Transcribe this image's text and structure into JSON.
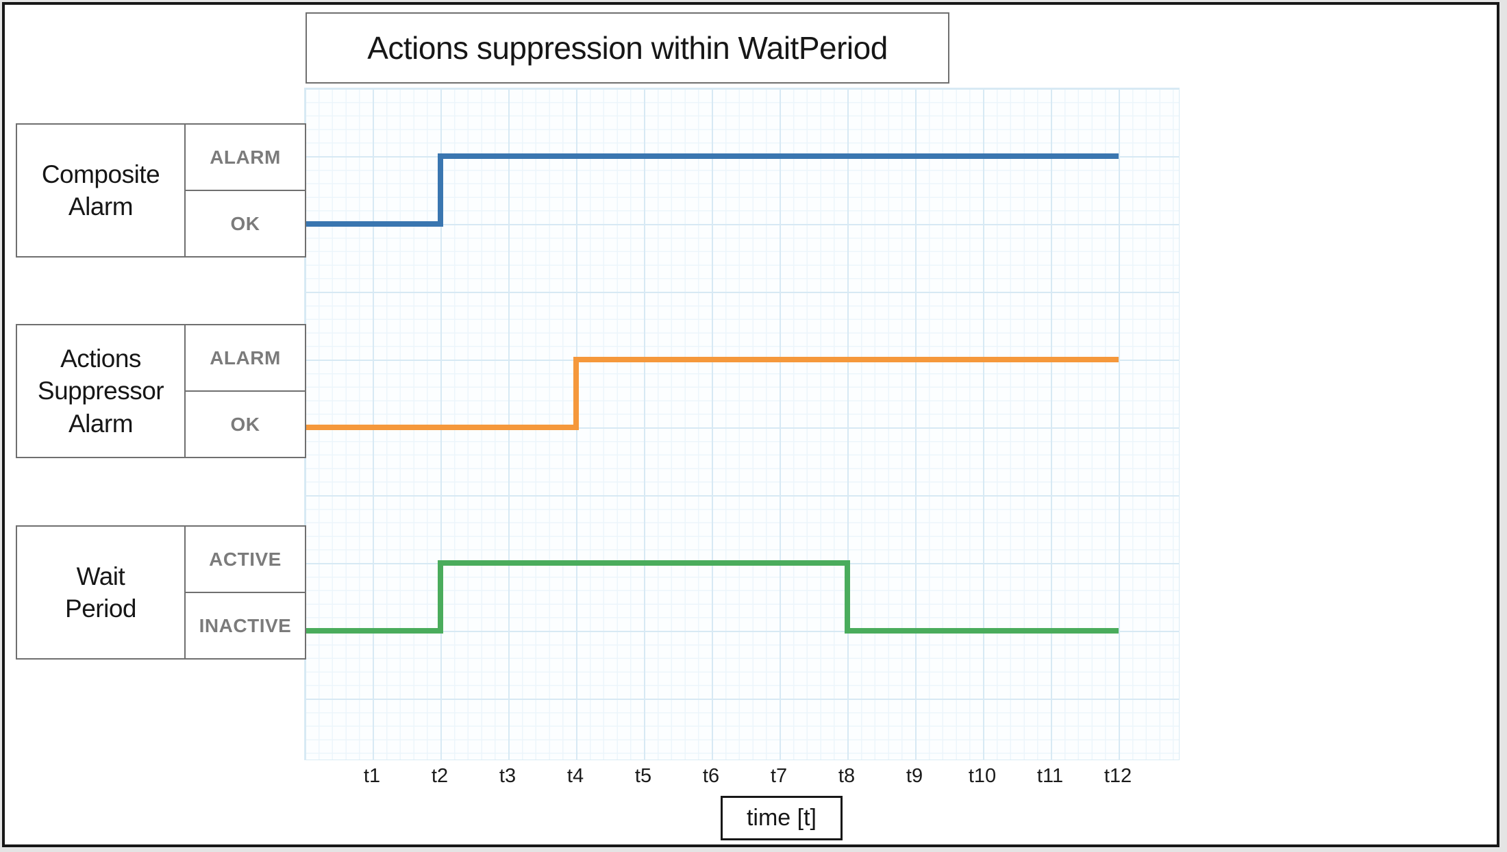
{
  "title": "Actions suppression within WaitPeriod",
  "rows": [
    {
      "label": "Composite\nAlarm",
      "high_label": "ALARM",
      "low_label": "OK"
    },
    {
      "label": "Actions\nSuppressor\nAlarm",
      "high_label": "ALARM",
      "low_label": "OK"
    },
    {
      "label": "Wait\nPeriod",
      "high_label": "ACTIVE",
      "low_label": "INACTIVE"
    }
  ],
  "axis": {
    "ticks": [
      "t1",
      "t2",
      "t3",
      "t4",
      "t5",
      "t6",
      "t7",
      "t8",
      "t9",
      "t10",
      "t11",
      "t12"
    ],
    "label": "time [t]"
  },
  "colors": {
    "composite_alarm_line": "#3a76b0",
    "actions_suppressor_line": "#f5983b",
    "wait_period_line": "#4aac5c",
    "grid_major": "#d7e9f4",
    "grid_minor": "#ecf5fb",
    "box_border": "#6f6f6f",
    "state_text": "#7b7b7b",
    "frame_border": "#171717"
  },
  "chart_data": {
    "type": "line",
    "subtype": "timing-step-diagram",
    "title": "Actions suppression within WaitPeriod",
    "xlabel": "time [t]",
    "x_ticks": [
      "t1",
      "t2",
      "t3",
      "t4",
      "t5",
      "t6",
      "t7",
      "t8",
      "t9",
      "t10",
      "t11",
      "t12"
    ],
    "x_range": [
      "t0",
      "t12"
    ],
    "grid": "on",
    "series": [
      {
        "name": "Composite Alarm",
        "color": "#3a76b0",
        "states": [
          "OK",
          "ALARM"
        ],
        "start_state": "OK",
        "transitions": [
          {
            "at": "t2",
            "to": "ALARM"
          }
        ],
        "end_state": "ALARM"
      },
      {
        "name": "Actions Suppressor Alarm",
        "color": "#f5983b",
        "states": [
          "OK",
          "ALARM"
        ],
        "start_state": "OK",
        "transitions": [
          {
            "at": "t4",
            "to": "ALARM"
          }
        ],
        "end_state": "ALARM"
      },
      {
        "name": "Wait Period",
        "color": "#4aac5c",
        "states": [
          "INACTIVE",
          "ACTIVE"
        ],
        "start_state": "INACTIVE",
        "transitions": [
          {
            "at": "t2",
            "to": "ACTIVE"
          },
          {
            "at": "t8",
            "to": "INACTIVE"
          }
        ],
        "end_state": "INACTIVE"
      }
    ]
  }
}
